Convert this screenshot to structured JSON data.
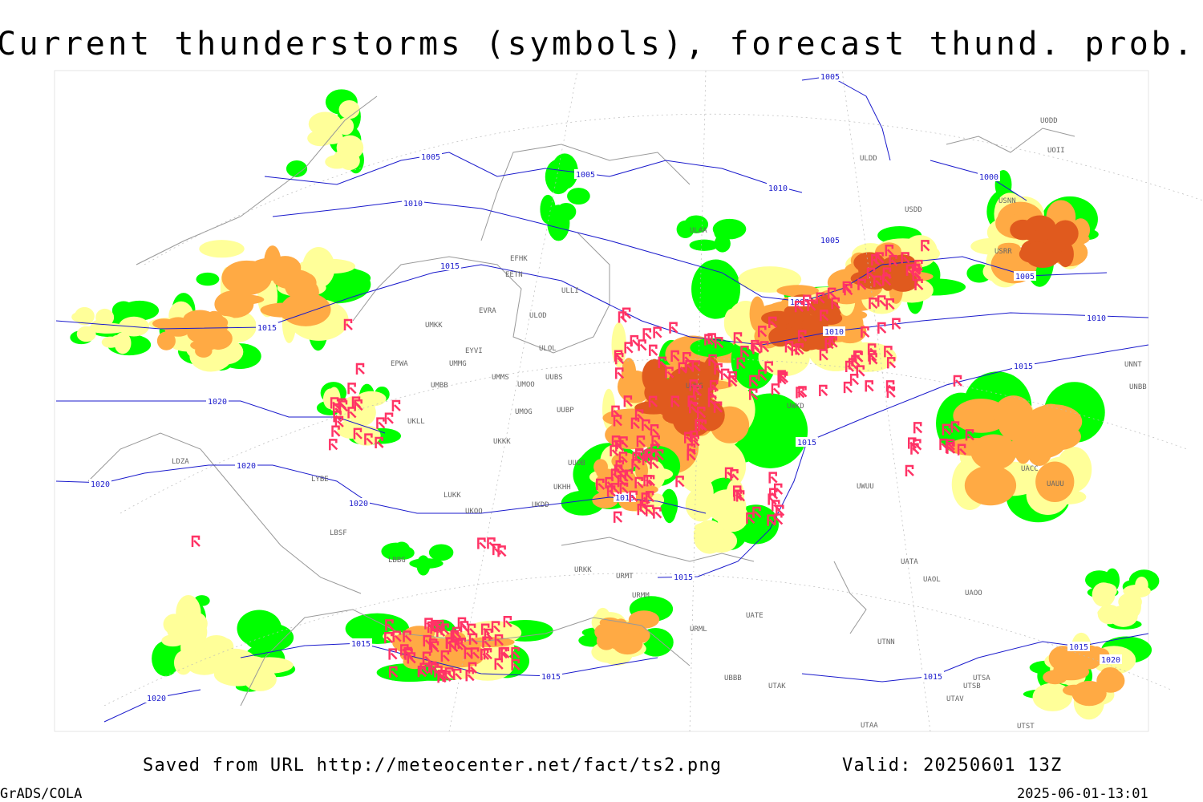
{
  "header": {
    "title": "Current thunderstorms (symbols), forecast thund. prob. (%, shaded)"
  },
  "footer": {
    "source": "Saved from URL http://meteocenter.net/fact/ts2.png",
    "valid": "Valid: 20250601 13Z",
    "software": "GrADS/COLA",
    "timestamp": "2025-06-01-13:01"
  },
  "isobars": [
    "1005",
    "1010",
    "1005",
    "1010",
    "1005",
    "1000",
    "1005",
    "1005",
    "1005",
    "1010",
    "1010",
    "1015",
    "1015",
    "1015",
    "1020",
    "1020",
    "1020",
    "1020",
    "1010",
    "1015",
    "1015",
    "1015",
    "1015",
    "1015",
    "1020",
    "1015",
    "1020"
  ],
  "stations": [
    "EFHK",
    "EETN",
    "ULLI",
    "EVRA",
    "ULOD",
    "UMKK",
    "EYVI",
    "ULOL",
    "EPWA",
    "UMMG",
    "UMMS",
    "UMOO",
    "UUBS",
    "UMBB",
    "UMOG",
    "UUBP",
    "UKLL",
    "UKKK",
    "UUOB",
    "UKHH",
    "UKOO",
    "UKDD",
    "LUKK",
    "LBSF",
    "LYBE",
    "LDZA",
    "LBBG",
    "URKK",
    "URMT",
    "URMM",
    "URML",
    "UBBB",
    "UTAK",
    "UATA",
    "UAOL",
    "UAOO",
    "UTNN",
    "UTSA",
    "UTSB",
    "UTAV",
    "UTAA",
    "UTST",
    "USDD",
    "ULDD",
    "UODD",
    "UOII",
    "USNN",
    "USRR",
    "UNNT",
    "UNBB",
    "UACC",
    "UAUU",
    "UWUU",
    "UWGG",
    "UWKD",
    "UATE",
    "ULAA"
  ]
}
